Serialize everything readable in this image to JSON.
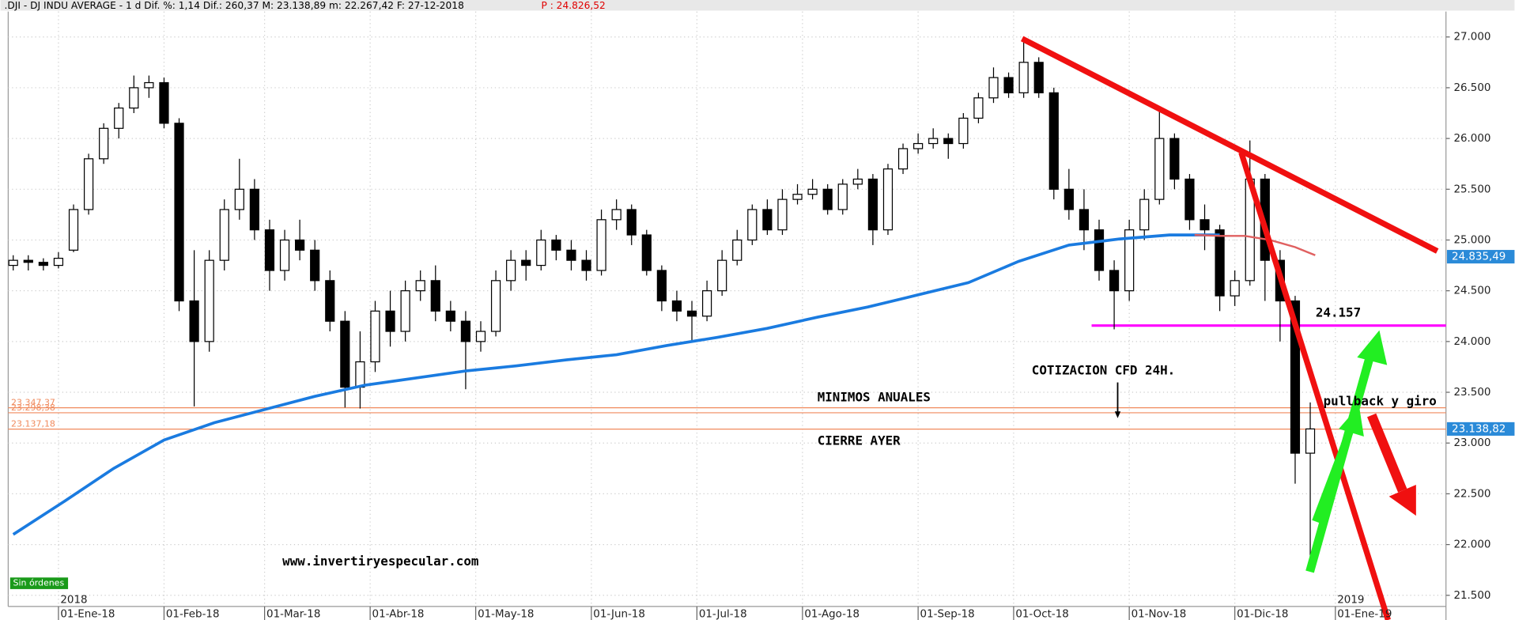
{
  "chart_data": {
    "type": "candlestick",
    "header": ".DJI - DJ INDU AVERAGE -  1 d Dif. %: 1,14 Dif.: 260,37 M: 23.138,89 m: 22.267,42 F: 27-12-2018",
    "header_price": "P : 24.826,52",
    "x": [
      0,
      3,
      6,
      9,
      12,
      15,
      18,
      21,
      24,
      27,
      30,
      33,
      36,
      39,
      42,
      45,
      48,
      51,
      54,
      57,
      60,
      63,
      66,
      69,
      72,
      75,
      78,
      81,
      84,
      87,
      90,
      93,
      96,
      99,
      102,
      105,
      108,
      111,
      114,
      117,
      120,
      123,
      126,
      129,
      132,
      135,
      138,
      141,
      144,
      147,
      150,
      153,
      156,
      159,
      162,
      165,
      168,
      171,
      174,
      177,
      180,
      183,
      186,
      189,
      192,
      195,
      198,
      201,
      204,
      207,
      210,
      213,
      216,
      219,
      222,
      225,
      228,
      231,
      234,
      237,
      240,
      243,
      246,
      249,
      252,
      255,
      258
    ],
    "open": [
      24750,
      24800,
      24780,
      24750,
      24900,
      25300,
      25800,
      26100,
      26300,
      26500,
      26550,
      26150,
      24400,
      24000,
      24800,
      25300,
      25500,
      25100,
      24700,
      25000,
      24900,
      24600,
      24200,
      23550,
      23800,
      24300,
      24100,
      24500,
      24600,
      24300,
      24200,
      24000,
      24100,
      24600,
      24800,
      24750,
      25000,
      24900,
      24800,
      24700,
      25200,
      25300,
      25050,
      24700,
      24400,
      24300,
      24250,
      24500,
      24800,
      25000,
      25300,
      25100,
      25400,
      25450,
      25500,
      25300,
      25550,
      25600,
      25100,
      25700,
      25900,
      25950,
      26000,
      25950,
      26200,
      26400,
      26600,
      26450,
      26750,
      26450,
      25500,
      25300,
      25100,
      24700,
      24500,
      25100,
      25400,
      26000,
      25600,
      25200,
      25100,
      24450,
      24600,
      25600,
      24800,
      24400,
      22900
    ],
    "high": [
      24850,
      24850,
      24820,
      24880,
      25350,
      25850,
      26150,
      26350,
      26620,
      26620,
      26600,
      26200,
      24900,
      24900,
      25400,
      25800,
      25600,
      25200,
      25100,
      25200,
      25000,
      24700,
      24300,
      24100,
      24400,
      24500,
      24600,
      24700,
      24750,
      24400,
      24300,
      24200,
      24700,
      24900,
      24900,
      25100,
      25050,
      25000,
      24900,
      25300,
      25400,
      25350,
      25100,
      24750,
      24500,
      24400,
      24600,
      24900,
      25100,
      25350,
      25400,
      25500,
      25550,
      25600,
      25550,
      25600,
      25700,
      25650,
      25750,
      25950,
      26050,
      26100,
      26050,
      26250,
      26450,
      26700,
      26650,
      26950,
      26800,
      26500,
      25700,
      25500,
      25200,
      24800,
      25200,
      25500,
      26270,
      26050,
      25650,
      25350,
      25150,
      24700,
      25980,
      25650,
      24900,
      24450,
      23400
    ],
    "low": [
      24700,
      24700,
      24700,
      24720,
      24880,
      25250,
      25750,
      26000,
      26250,
      26400,
      26100,
      24300,
      23360,
      23900,
      24700,
      25200,
      25000,
      24500,
      24600,
      24800,
      24500,
      24100,
      23350,
      23340,
      23700,
      23950,
      24000,
      24400,
      24200,
      24100,
      23530,
      23900,
      24050,
      24500,
      24600,
      24700,
      24800,
      24700,
      24600,
      24650,
      25100,
      24950,
      24650,
      24300,
      24200,
      24000,
      24200,
      24450,
      24750,
      24950,
      25050,
      25050,
      25350,
      25400,
      25250,
      25250,
      25500,
      24950,
      25050,
      25650,
      25850,
      25900,
      25800,
      25900,
      26150,
      26350,
      26400,
      26400,
      26400,
      25400,
      25200,
      24900,
      24600,
      24120,
      24400,
      25000,
      25350,
      25500,
      25100,
      24900,
      24300,
      24350,
      24550,
      24400,
      24000,
      22600,
      21790
    ],
    "close": [
      24800,
      24780,
      24750,
      24820,
      25300,
      25800,
      26100,
      26300,
      26500,
      26550,
      26150,
      24400,
      24000,
      24800,
      25300,
      25500,
      25100,
      24700,
      25000,
      24900,
      24600,
      24200,
      23550,
      23800,
      24300,
      24100,
      24500,
      24600,
      24300,
      24200,
      24000,
      24100,
      24600,
      24800,
      24750,
      25000,
      24900,
      24800,
      24700,
      25200,
      25300,
      25050,
      24700,
      24400,
      24300,
      24250,
      24500,
      24800,
      25000,
      25300,
      25100,
      25400,
      25450,
      25500,
      25300,
      25550,
      25600,
      25100,
      25700,
      25900,
      25950,
      26000,
      25950,
      26200,
      26400,
      26600,
      26450,
      26750,
      26450,
      25500,
      25300,
      25100,
      24700,
      24500,
      25100,
      25400,
      26000,
      25600,
      25200,
      25100,
      24450,
      24600,
      25600,
      24800,
      24400,
      22900,
      23139
    ],
    "xlim": [
      -1,
      285
    ],
    "ylim": [
      21390,
      27250
    ],
    "yticks": [
      {
        "value": 21500,
        "label": "21.500"
      },
      {
        "value": 22000,
        "label": "22.000"
      },
      {
        "value": 22500,
        "label": "22.500"
      },
      {
        "value": 23000,
        "label": "23.000"
      },
      {
        "value": 23500,
        "label": "23.500"
      },
      {
        "value": 24000,
        "label": "24.000"
      },
      {
        "value": 24500,
        "label": "24.500"
      },
      {
        "value": 25000,
        "label": "25.000"
      },
      {
        "value": 25500,
        "label": "25.500"
      },
      {
        "value": 26000,
        "label": "26.000"
      },
      {
        "value": 26500,
        "label": "26.500"
      },
      {
        "value": 27000,
        "label": "27.000"
      }
    ],
    "xticks": [
      {
        "value": 9,
        "label": "01-Ene-18"
      },
      {
        "value": 30,
        "label": "01-Feb-18"
      },
      {
        "value": 50,
        "label": "01-Mar-18"
      },
      {
        "value": 71,
        "label": "01-Abr-18"
      },
      {
        "value": 92,
        "label": "01-May-18"
      },
      {
        "value": 115,
        "label": "01-Jun-18"
      },
      {
        "value": 136,
        "label": "01-Jul-18"
      },
      {
        "value": 157,
        "label": "01-Ago-18"
      },
      {
        "value": 180,
        "label": "01-Sep-18"
      },
      {
        "value": 199,
        "label": "01-Oct-18"
      },
      {
        "value": 222,
        "label": "01-Nov-18"
      },
      {
        "value": 243,
        "label": "01-Dic-18"
      },
      {
        "value": 263,
        "label": "01-Ene-19"
      }
    ],
    "year_ticks": [
      {
        "value": 9,
        "label": "2018"
      },
      {
        "value": 263,
        "label": "2019"
      }
    ],
    "grid": true,
    "moving_average": {
      "color": "#1a7be0",
      "x": [
        0,
        10,
        20,
        30,
        40,
        50,
        60,
        70,
        80,
        90,
        100,
        110,
        120,
        130,
        140,
        150,
        160,
        170,
        180,
        190,
        200,
        210,
        220,
        230,
        240
      ],
      "values": [
        22100,
        22420,
        22750,
        23030,
        23200,
        23330,
        23460,
        23570,
        23640,
        23710,
        23760,
        23820,
        23870,
        23960,
        24040,
        24130,
        24240,
        24340,
        24460,
        24580,
        24790,
        24950,
        25010,
        25050,
        25050
      ]
    },
    "ma_projection": {
      "color": "#e06060",
      "x": [
        235,
        240,
        245,
        250,
        255,
        259
      ],
      "values": [
        25050,
        25040,
        25040,
        25000,
        24930,
        24850
      ]
    },
    "levels": [
      {
        "value": 23347.37,
        "label": "23.347,37"
      },
      {
        "value": 23298.38,
        "label": "23.298,38"
      },
      {
        "value": 23137.18,
        "label": "23.137,18"
      }
    ],
    "levels_color": "#f08a5d",
    "support": {
      "value": 24157,
      "label": "24.157",
      "color": "#ff00ff"
    },
    "price_tags": [
      {
        "value": 24835.49,
        "label": "24.835,49"
      },
      {
        "value": 23138.82,
        "label": "23.138,82"
      }
    ],
    "annotations": [
      "COTIZACION CFD 24H.",
      "MINIMOS ANUALES",
      "CIERRE AYER",
      "pullback y giro",
      "www.invertiryespecular.com"
    ],
    "status": "Sin órdenes"
  }
}
